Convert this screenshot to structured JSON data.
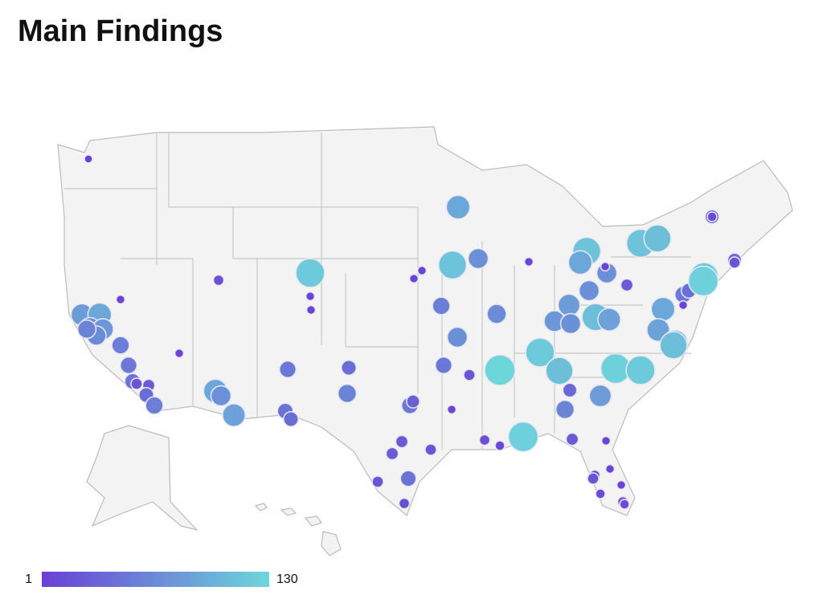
{
  "title": "Main Findings",
  "legend": {
    "min": 1,
    "max": 130,
    "color_low": "#6a3fd6",
    "color_high": "#6dd6da"
  },
  "bubbles": [
    1,
    80,
    90,
    70,
    75,
    65,
    60,
    55,
    50,
    45,
    20,
    25,
    40,
    55,
    5,
    5,
    90,
    70,
    85,
    15,
    120,
    5,
    5,
    50,
    45,
    40,
    40,
    60,
    50,
    30,
    25,
    25,
    20,
    20,
    45,
    15,
    5,
    5,
    5,
    90,
    115,
    70,
    5,
    55,
    70,
    50,
    20,
    65,
    130,
    120,
    110,
    35,
    60,
    80,
    125,
    120,
    15,
    10,
    125,
    25,
    5,
    15,
    20,
    5,
    5,
    10,
    15,
    10,
    115,
    90,
    70,
    70,
    25,
    80,
    75,
    70,
    110,
    85,
    115,
    110,
    90,
    85,
    100,
    110,
    50,
    40,
    5,
    120,
    125,
    35,
    20,
    35,
    10,
    5
  ]
}
